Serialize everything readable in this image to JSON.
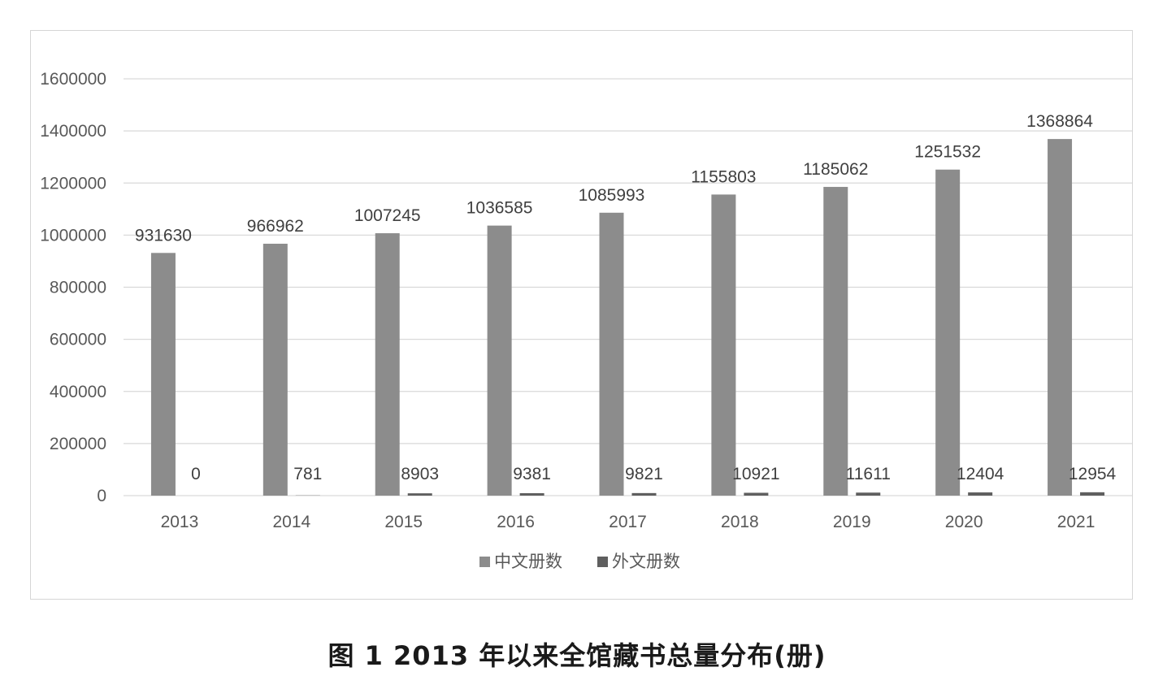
{
  "caption": "图 1  2013 年以来全馆藏书总量分布(册)",
  "colors": {
    "series_chinese": "#8c8c8c",
    "series_foreign": "#5f5f5f",
    "grid": "#d9d9d9",
    "axis_text": "#595959",
    "label_text": "#404040"
  },
  "chart_data": {
    "type": "bar",
    "categories": [
      "2013",
      "2014",
      "2015",
      "2016",
      "2017",
      "2018",
      "2019",
      "2020",
      "2021"
    ],
    "series": [
      {
        "name": "中文册数",
        "values": [
          931630,
          966962,
          1007245,
          1036585,
          1085993,
          1155803,
          1185062,
          1251532,
          1368864
        ]
      },
      {
        "name": "外文册数",
        "values": [
          0,
          781,
          8903,
          9381,
          9821,
          10921,
          11611,
          12404,
          12954
        ]
      }
    ],
    "yticks": [
      "0",
      "200000",
      "400000",
      "600000",
      "800000",
      "1000000",
      "1200000",
      "1400000",
      "1600000"
    ],
    "ylim": [
      0,
      1600000
    ],
    "grid": true,
    "legend": "bottom-center",
    "title": "",
    "xlabel": "",
    "ylabel": ""
  }
}
